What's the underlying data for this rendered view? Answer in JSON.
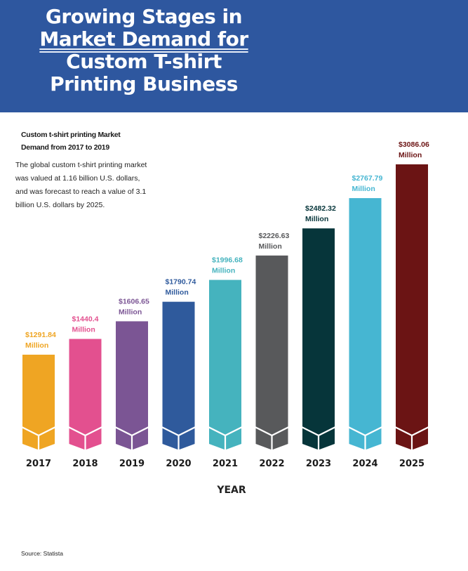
{
  "header": {
    "title_lines": [
      "Growing Stages in",
      "Market Demand for",
      "Custom T-shirt",
      "Printing Business"
    ],
    "background": "#2e579f"
  },
  "intro": {
    "heading": "Custom t-shirt printing Market Demand from 2017 to 2019",
    "body": "The global custom t-shirt printing market was valued at 1.16 billion U.S. dollars, and was forecast to reach a value of 3.1 billion U.S. dollars by 2025."
  },
  "source": "Source: Statista",
  "chart_data": {
    "type": "bar",
    "title": "",
    "xlabel": "YEAR",
    "ylabel": "",
    "categories": [
      "2017",
      "2018",
      "2019",
      "2020",
      "2021",
      "2022",
      "2023",
      "2024",
      "2025"
    ],
    "values": [
      1291.84,
      1440.4,
      1606.65,
      1790.74,
      1996.68,
      2226.63,
      2482.32,
      2767.79,
      3086.06
    ],
    "value_labels": [
      "$1291.84",
      "$1440.4",
      "$1606.65",
      "$1790.74",
      "$1996.68",
      "$2226.63",
      "$2482.32",
      "$2767.79",
      "$3086.06"
    ],
    "unit_label": "Million",
    "colors": [
      "#efa523",
      "#e3508f",
      "#7b5594",
      "#2f5a9c",
      "#45b3be",
      "#58595b",
      "#06353a",
      "#46b6d2",
      "#6b1414"
    ],
    "label_colors": [
      "#efa523",
      "#e3508f",
      "#7b5594",
      "#2f5a9c",
      "#45b3be",
      "#58595b",
      "#06353a",
      "#46b6d2",
      "#6b1414"
    ],
    "grid": false,
    "legend": "none"
  }
}
